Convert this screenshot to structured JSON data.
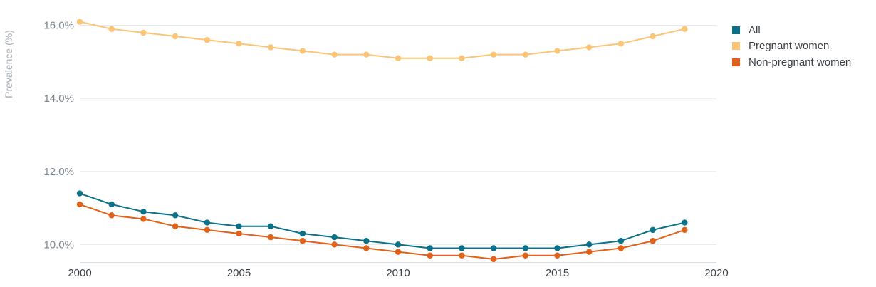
{
  "chart_data": {
    "type": "line",
    "title": "",
    "xlabel": "",
    "ylabel": "Prevalence (%)",
    "xlim": [
      2000,
      2020
    ],
    "ylim": [
      9.5,
      16.5
    ],
    "x_ticks": [
      2000,
      2005,
      2010,
      2015,
      2020
    ],
    "y_ticks": [
      10,
      12,
      14,
      16
    ],
    "y_tick_labels": [
      "10.0%",
      "12.0%",
      "14.0%",
      "16.0%"
    ],
    "grid": true,
    "legend_position": "top-right",
    "x": [
      2000,
      2001,
      2002,
      2003,
      2004,
      2005,
      2006,
      2007,
      2008,
      2009,
      2010,
      2011,
      2012,
      2013,
      2014,
      2015,
      2016,
      2017,
      2018,
      2019
    ],
    "series": [
      {
        "name": "All",
        "color": "#0b7189",
        "values": [
          11.4,
          11.1,
          10.9,
          10.8,
          10.6,
          10.5,
          10.5,
          10.3,
          10.2,
          10.1,
          10.0,
          9.9,
          9.9,
          9.9,
          9.9,
          9.9,
          10.0,
          10.1,
          10.4,
          10.6
        ]
      },
      {
        "name": "Pregnant women",
        "color": "#fbc577",
        "values": [
          16.1,
          15.9,
          15.8,
          15.7,
          15.6,
          15.5,
          15.4,
          15.3,
          15.2,
          15.2,
          15.1,
          15.1,
          15.1,
          15.2,
          15.2,
          15.3,
          15.4,
          15.5,
          15.7,
          15.9
        ]
      },
      {
        "name": "Non-pregnant women",
        "color": "#e0621a",
        "values": [
          11.1,
          10.8,
          10.7,
          10.5,
          10.4,
          10.3,
          10.2,
          10.1,
          10.0,
          9.9,
          9.8,
          9.7,
          9.7,
          9.6,
          9.7,
          9.7,
          9.8,
          9.9,
          10.1,
          10.4
        ]
      }
    ]
  }
}
